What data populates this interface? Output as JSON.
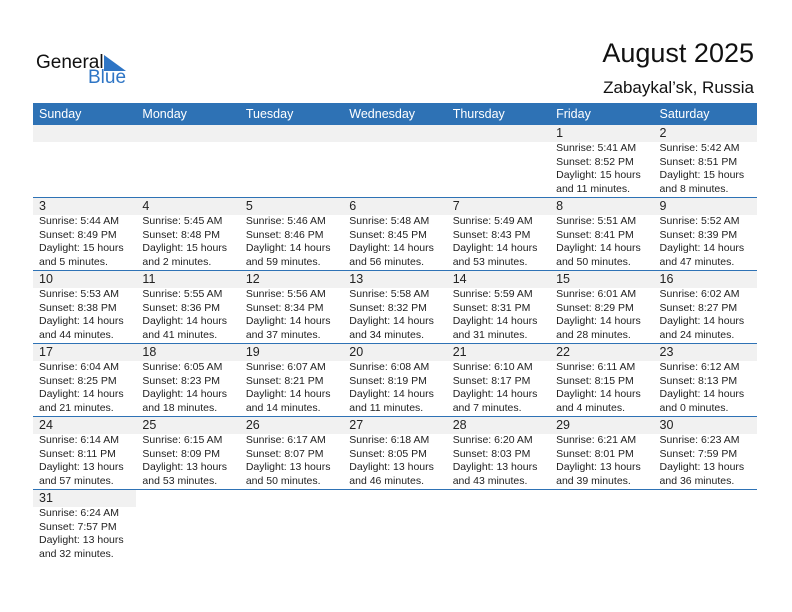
{
  "logo": {
    "line1": "General",
    "line2": "Blue",
    "accent": "#2e75c5"
  },
  "title": "August 2025",
  "location": "Zabaykal’sk, Russia",
  "days": [
    "Sunday",
    "Monday",
    "Tuesday",
    "Wednesday",
    "Thursday",
    "Friday",
    "Saturday"
  ],
  "weeks": [
    [
      null,
      null,
      null,
      null,
      null,
      {
        "day": "1",
        "sunrise": "Sunrise: 5:41 AM",
        "sunset": "Sunset: 8:52 PM",
        "daylight": "Daylight: 15 hours",
        "minutes": "and 11 minutes."
      },
      {
        "day": "2",
        "sunrise": "Sunrise: 5:42 AM",
        "sunset": "Sunset: 8:51 PM",
        "daylight": "Daylight: 15 hours",
        "minutes": "and 8 minutes."
      }
    ],
    [
      {
        "day": "3",
        "sunrise": "Sunrise: 5:44 AM",
        "sunset": "Sunset: 8:49 PM",
        "daylight": "Daylight: 15 hours",
        "minutes": "and 5 minutes."
      },
      {
        "day": "4",
        "sunrise": "Sunrise: 5:45 AM",
        "sunset": "Sunset: 8:48 PM",
        "daylight": "Daylight: 15 hours",
        "minutes": "and 2 minutes."
      },
      {
        "day": "5",
        "sunrise": "Sunrise: 5:46 AM",
        "sunset": "Sunset: 8:46 PM",
        "daylight": "Daylight: 14 hours",
        "minutes": "and 59 minutes."
      },
      {
        "day": "6",
        "sunrise": "Sunrise: 5:48 AM",
        "sunset": "Sunset: 8:45 PM",
        "daylight": "Daylight: 14 hours",
        "minutes": "and 56 minutes."
      },
      {
        "day": "7",
        "sunrise": "Sunrise: 5:49 AM",
        "sunset": "Sunset: 8:43 PM",
        "daylight": "Daylight: 14 hours",
        "minutes": "and 53 minutes."
      },
      {
        "day": "8",
        "sunrise": "Sunrise: 5:51 AM",
        "sunset": "Sunset: 8:41 PM",
        "daylight": "Daylight: 14 hours",
        "minutes": "and 50 minutes."
      },
      {
        "day": "9",
        "sunrise": "Sunrise: 5:52 AM",
        "sunset": "Sunset: 8:39 PM",
        "daylight": "Daylight: 14 hours",
        "minutes": "and 47 minutes."
      }
    ],
    [
      {
        "day": "10",
        "sunrise": "Sunrise: 5:53 AM",
        "sunset": "Sunset: 8:38 PM",
        "daylight": "Daylight: 14 hours",
        "minutes": "and 44 minutes."
      },
      {
        "day": "11",
        "sunrise": "Sunrise: 5:55 AM",
        "sunset": "Sunset: 8:36 PM",
        "daylight": "Daylight: 14 hours",
        "minutes": "and 41 minutes."
      },
      {
        "day": "12",
        "sunrise": "Sunrise: 5:56 AM",
        "sunset": "Sunset: 8:34 PM",
        "daylight": "Daylight: 14 hours",
        "minutes": "and 37 minutes."
      },
      {
        "day": "13",
        "sunrise": "Sunrise: 5:58 AM",
        "sunset": "Sunset: 8:32 PM",
        "daylight": "Daylight: 14 hours",
        "minutes": "and 34 minutes."
      },
      {
        "day": "14",
        "sunrise": "Sunrise: 5:59 AM",
        "sunset": "Sunset: 8:31 PM",
        "daylight": "Daylight: 14 hours",
        "minutes": "and 31 minutes."
      },
      {
        "day": "15",
        "sunrise": "Sunrise: 6:01 AM",
        "sunset": "Sunset: 8:29 PM",
        "daylight": "Daylight: 14 hours",
        "minutes": "and 28 minutes."
      },
      {
        "day": "16",
        "sunrise": "Sunrise: 6:02 AM",
        "sunset": "Sunset: 8:27 PM",
        "daylight": "Daylight: 14 hours",
        "minutes": "and 24 minutes."
      }
    ],
    [
      {
        "day": "17",
        "sunrise": "Sunrise: 6:04 AM",
        "sunset": "Sunset: 8:25 PM",
        "daylight": "Daylight: 14 hours",
        "minutes": "and 21 minutes."
      },
      {
        "day": "18",
        "sunrise": "Sunrise: 6:05 AM",
        "sunset": "Sunset: 8:23 PM",
        "daylight": "Daylight: 14 hours",
        "minutes": "and 18 minutes."
      },
      {
        "day": "19",
        "sunrise": "Sunrise: 6:07 AM",
        "sunset": "Sunset: 8:21 PM",
        "daylight": "Daylight: 14 hours",
        "minutes": "and 14 minutes."
      },
      {
        "day": "20",
        "sunrise": "Sunrise: 6:08 AM",
        "sunset": "Sunset: 8:19 PM",
        "daylight": "Daylight: 14 hours",
        "minutes": "and 11 minutes."
      },
      {
        "day": "21",
        "sunrise": "Sunrise: 6:10 AM",
        "sunset": "Sunset: 8:17 PM",
        "daylight": "Daylight: 14 hours",
        "minutes": "and 7 minutes."
      },
      {
        "day": "22",
        "sunrise": "Sunrise: 6:11 AM",
        "sunset": "Sunset: 8:15 PM",
        "daylight": "Daylight: 14 hours",
        "minutes": "and 4 minutes."
      },
      {
        "day": "23",
        "sunrise": "Sunrise: 6:12 AM",
        "sunset": "Sunset: 8:13 PM",
        "daylight": "Daylight: 14 hours",
        "minutes": "and 0 minutes."
      }
    ],
    [
      {
        "day": "24",
        "sunrise": "Sunrise: 6:14 AM",
        "sunset": "Sunset: 8:11 PM",
        "daylight": "Daylight: 13 hours",
        "minutes": "and 57 minutes."
      },
      {
        "day": "25",
        "sunrise": "Sunrise: 6:15 AM",
        "sunset": "Sunset: 8:09 PM",
        "daylight": "Daylight: 13 hours",
        "minutes": "and 53 minutes."
      },
      {
        "day": "26",
        "sunrise": "Sunrise: 6:17 AM",
        "sunset": "Sunset: 8:07 PM",
        "daylight": "Daylight: 13 hours",
        "minutes": "and 50 minutes."
      },
      {
        "day": "27",
        "sunrise": "Sunrise: 6:18 AM",
        "sunset": "Sunset: 8:05 PM",
        "daylight": "Daylight: 13 hours",
        "minutes": "and 46 minutes."
      },
      {
        "day": "28",
        "sunrise": "Sunrise: 6:20 AM",
        "sunset": "Sunset: 8:03 PM",
        "daylight": "Daylight: 13 hours",
        "minutes": "and 43 minutes."
      },
      {
        "day": "29",
        "sunrise": "Sunrise: 6:21 AM",
        "sunset": "Sunset: 8:01 PM",
        "daylight": "Daylight: 13 hours",
        "minutes": "and 39 minutes."
      },
      {
        "day": "30",
        "sunrise": "Sunrise: 6:23 AM",
        "sunset": "Sunset: 7:59 PM",
        "daylight": "Daylight: 13 hours",
        "minutes": "and 36 minutes."
      }
    ],
    [
      {
        "day": "31",
        "sunrise": "Sunrise: 6:24 AM",
        "sunset": "Sunset: 7:57 PM",
        "daylight": "Daylight: 13 hours",
        "minutes": "and 32 minutes."
      }
    ]
  ],
  "colors": {
    "header": "#2e72b5",
    "band": "#f1f1f1"
  }
}
